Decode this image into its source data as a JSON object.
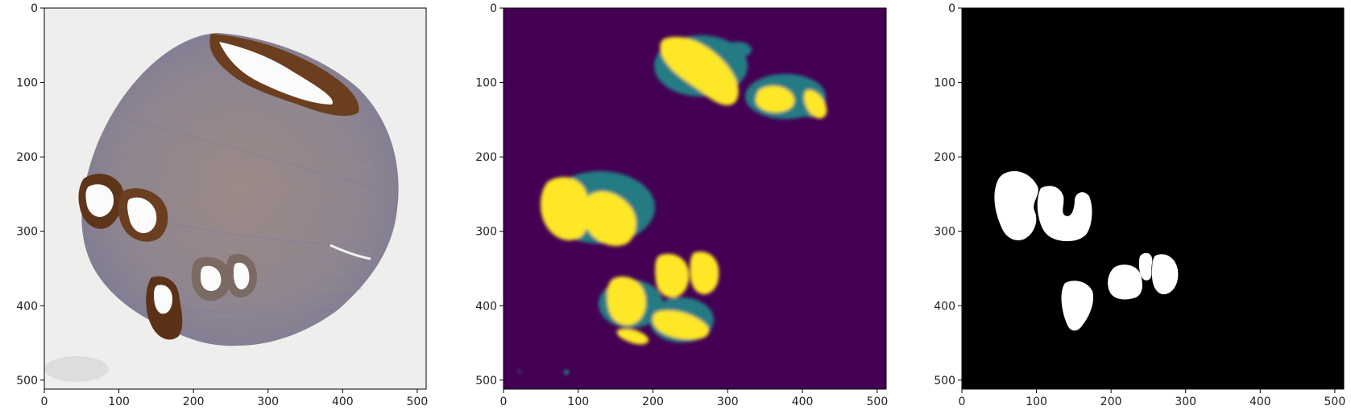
{
  "figure": {
    "panels": [
      {
        "id": "tissue",
        "content": "H&E-like tissue microarray core (round biopsy, brown stained glands)",
        "xticks": [
          "0",
          "100",
          "200",
          "300",
          "400",
          "500"
        ],
        "yticks": [
          "0",
          "100",
          "200",
          "300",
          "400",
          "500"
        ]
      },
      {
        "id": "probability",
        "content": "viridis heatmap of predicted gland probability",
        "xticks": [
          "0",
          "100",
          "200",
          "300",
          "400",
          "500"
        ],
        "yticks": [
          "0",
          "100",
          "200",
          "300",
          "400",
          "500"
        ]
      },
      {
        "id": "mask",
        "content": "binary mask: white blobs on black",
        "xticks": [
          "0",
          "100",
          "200",
          "300",
          "400",
          "500"
        ],
        "yticks": [
          "0",
          "100",
          "200",
          "300",
          "400",
          "500"
        ]
      }
    ],
    "axis_range": [
      0,
      512
    ],
    "colors": {
      "background": "#ffffff",
      "tissue_bg": "#eeeeed",
      "tissue_core": "#8c7f86",
      "gland_brown": "#5a3418",
      "viridis_low": "#440154",
      "viridis_mid": "#21918c",
      "viridis_high": "#fde725",
      "mask_bg": "#000000",
      "mask_fg": "#ffffff"
    }
  }
}
